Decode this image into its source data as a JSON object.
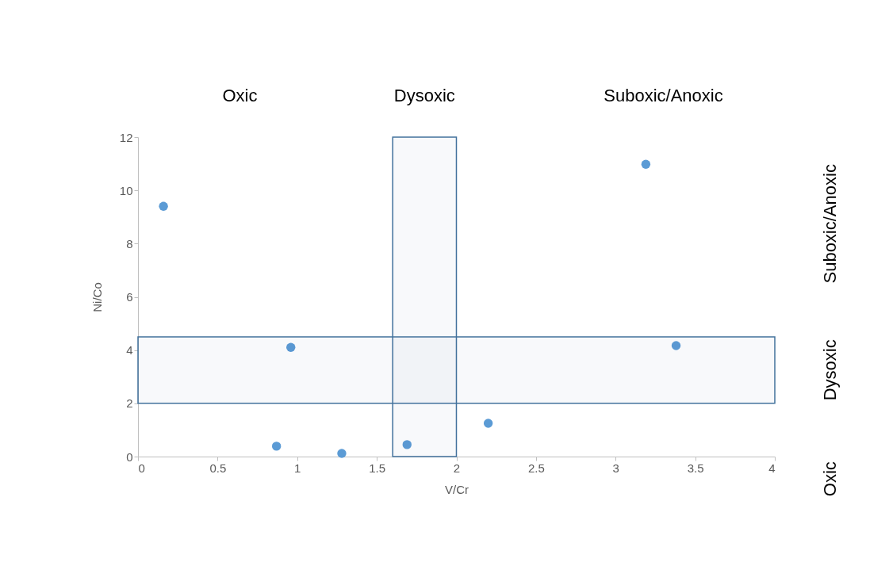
{
  "chart_data": {
    "type": "scatter",
    "xlabel": "V/Cr",
    "ylabel": "Ni/Co",
    "x": [
      0.16,
      0.96,
      0.87,
      1.28,
      1.69,
      2.2,
      3.19,
      3.38
    ],
    "series": [
      {
        "color": "#5b9bd5",
        "values": [
          9.4,
          4.1,
          0.39,
          0.12,
          0.45,
          1.25,
          10.98,
          4.17
        ]
      }
    ],
    "xlim": [
      0,
      4
    ],
    "xticks": [
      0,
      0.5,
      1,
      1.5,
      2,
      2.5,
      3,
      3.5,
      4
    ],
    "ylim": [
      0,
      12
    ],
    "yticks": [
      0,
      2,
      4,
      6,
      8,
      10,
      12
    ],
    "marker": "circle",
    "grid": false,
    "legend": false,
    "bands": [
      {
        "axis": "x",
        "from": 1.6,
        "to": 2,
        "label": "Dysoxic",
        "color": "#41719c"
      },
      {
        "axis": "y",
        "from": 2,
        "to": 4.5,
        "label": "Dysoxic",
        "color": "#41719c"
      }
    ],
    "annotations": [
      "Oxic",
      "Suboxic/Anoxic",
      "Oxic",
      "Suboxic/Anoxic"
    ]
  }
}
